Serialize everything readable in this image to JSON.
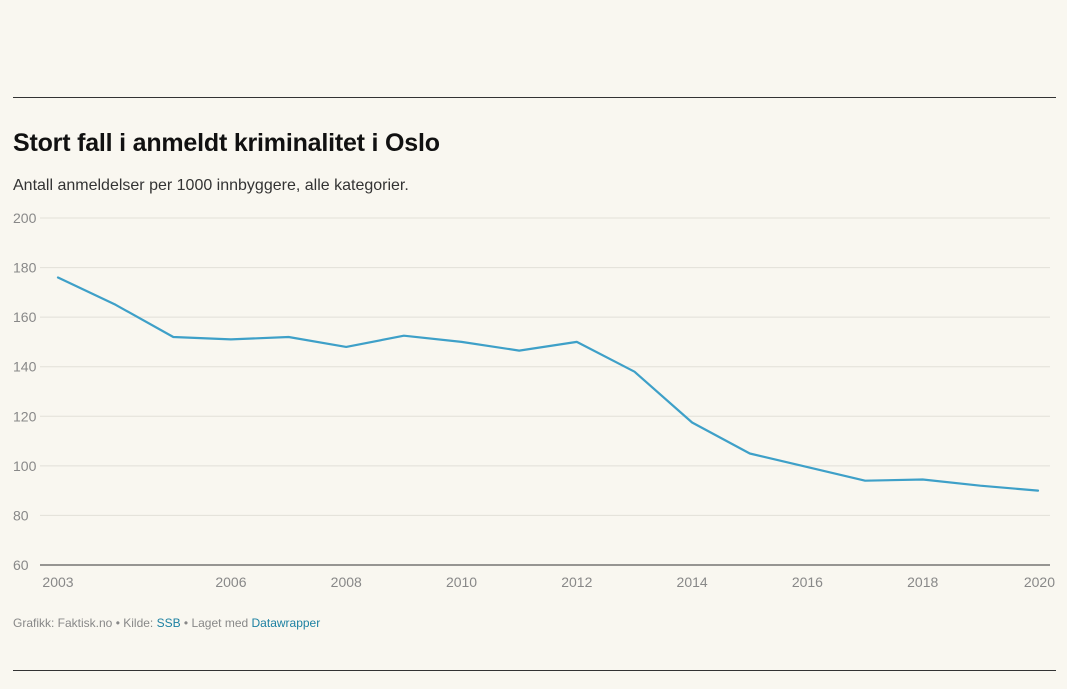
{
  "header": {
    "title": "Stort fall i anmeldt kriminalitet i Oslo",
    "subtitle": "Antall anmeldelser per 1000 innbyggere, alle kategorier."
  },
  "footer": {
    "credit_prefix": "Grafikk: Faktisk.no • Kilde: ",
    "source_link": "SSB",
    "made_with_prefix": " • Laget med ",
    "made_with_link": "Datawrapper"
  },
  "chart_data": {
    "type": "line",
    "title": "Stort fall i anmeldt kriminalitet i Oslo",
    "subtitle": "Antall anmeldelser per 1000 innbyggere, alle kategorier.",
    "xlabel": "",
    "ylabel": "",
    "xlim": [
      2003,
      2020
    ],
    "ylim": [
      60,
      200
    ],
    "grid": true,
    "x_ticks": [
      2003,
      2006,
      2008,
      2010,
      2012,
      2014,
      2016,
      2018,
      2020
    ],
    "y_ticks": [
      60,
      80,
      100,
      120,
      140,
      160,
      180,
      200
    ],
    "line_color": "#3ea0c8",
    "series": [
      {
        "x": [
          2003,
          2004,
          2005,
          2006,
          2007,
          2008,
          2009,
          2010,
          2011,
          2012,
          2013,
          2014,
          2015,
          2016,
          2017,
          2018,
          2019,
          2020
        ],
        "values": [
          176,
          165,
          152,
          151,
          152,
          148,
          152.5,
          150,
          146.5,
          150,
          138,
          117.5,
          105,
          99.5,
          94,
          94.5,
          92,
          90
        ]
      }
    ]
  }
}
